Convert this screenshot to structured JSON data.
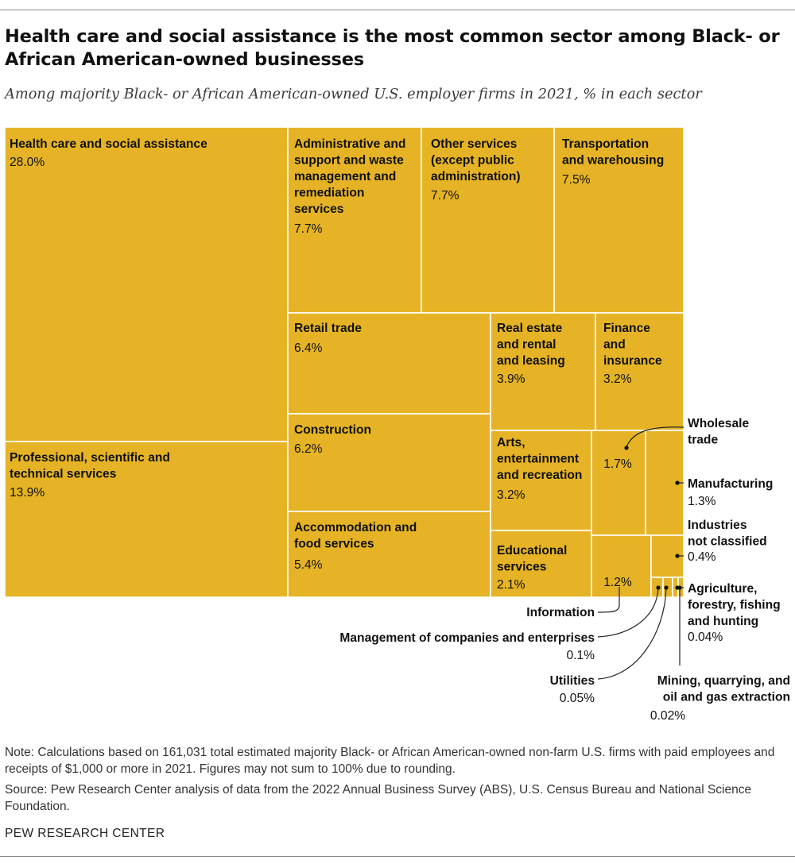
{
  "title": "Health care and social assistance is the most common sector among Black- or African American-owned businesses",
  "subtitle": "Among majority Black- or African American-owned U.S. employer firms in 2021, % in each sector",
  "note": "Note: Calculations based on 161,031 total estimated majority Black- or African American-owned non-farm U.S. firms with paid employees and receipts of $1,000 or more in 2021. Figures may not sum to 100% due to rounding.",
  "source": "Source: Pew Research Center analysis of data from the 2022 Annual Business Survey (ABS), U.S. Census Bureau and National Science Foundation.",
  "brand": "PEW RESEARCH CENTER",
  "chart_data": {
    "type": "treemap",
    "unit": "%",
    "color": "#E5B325",
    "border_color": "#ffffff",
    "items": [
      {
        "name": "Health care and social assistance",
        "value": 28.0,
        "label": "28.0%"
      },
      {
        "name": "Professional, scientific and technical services",
        "value": 13.9,
        "label": "13.9%"
      },
      {
        "name": "Administrative and support and waste management and remediation services",
        "value": 7.7,
        "label": "7.7%"
      },
      {
        "name": "Other services (except public administration)",
        "value": 7.7,
        "label": "7.7%"
      },
      {
        "name": "Transportation and warehousing",
        "value": 7.5,
        "label": "7.5%"
      },
      {
        "name": "Retail trade",
        "value": 6.4,
        "label": "6.4%"
      },
      {
        "name": "Construction",
        "value": 6.2,
        "label": "6.2%"
      },
      {
        "name": "Accommodation and food services",
        "value": 5.4,
        "label": "5.4%"
      },
      {
        "name": "Real estate and rental and leasing",
        "value": 3.9,
        "label": "3.9%"
      },
      {
        "name": "Finance and insurance",
        "value": 3.2,
        "label": "3.2%"
      },
      {
        "name": "Arts, entertainment and recreation",
        "value": 3.2,
        "label": "3.2%"
      },
      {
        "name": "Educational services",
        "value": 2.1,
        "label": "2.1%"
      },
      {
        "name": "Wholesale trade",
        "value": 1.7,
        "label": "1.7%"
      },
      {
        "name": "Manufacturing",
        "value": 1.3,
        "label": "1.3%"
      },
      {
        "name": "Information",
        "value": 1.2,
        "label": "1.2%"
      },
      {
        "name": "Industries not classified",
        "value": 0.4,
        "label": "0.4%"
      },
      {
        "name": "Management of companies and enterprises",
        "value": 0.1,
        "label": "0.1%"
      },
      {
        "name": "Utilities",
        "value": 0.05,
        "label": "0.05%"
      },
      {
        "name": "Agriculture, forestry, fishing and hunting",
        "value": 0.04,
        "label": "0.04%"
      },
      {
        "name": "Mining, quarrying, and oil and gas extraction",
        "value": 0.02,
        "label": "0.02%"
      }
    ]
  }
}
